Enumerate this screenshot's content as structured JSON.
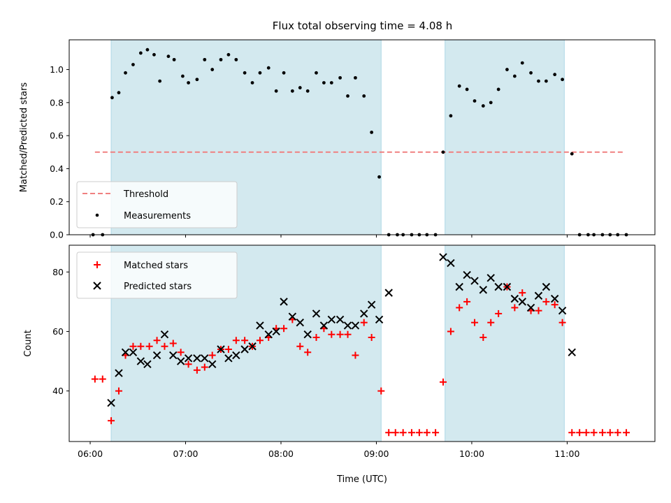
{
  "chart_data": {
    "type": "scatter",
    "title": "Flux total observing time = 4.08 h",
    "xlabel": "Time (UTC)",
    "xlim_hours": [
      5.78,
      11.92
    ],
    "x_ticks": [
      {
        "value": 6,
        "label": "06:00"
      },
      {
        "value": 7,
        "label": "07:00"
      },
      {
        "value": 8,
        "label": "08:00"
      },
      {
        "value": 9,
        "label": "09:00"
      },
      {
        "value": 10,
        "label": "10:00"
      },
      {
        "value": 11,
        "label": "11:00"
      }
    ],
    "colors": {
      "span": "#d3e9ef",
      "span_edge": "#add8e6",
      "threshold": "#f08080",
      "measurements": "#000000",
      "matched": "#ff0000",
      "predicted": "#000000"
    },
    "observing_spans_hours": [
      [
        6.22,
        9.05
      ],
      [
        9.72,
        10.97
      ]
    ],
    "panels": [
      {
        "ylabel": "Matched/Predicted stars",
        "ylim": [
          0,
          1.18
        ],
        "y_ticks": [
          {
            "value": 0.0,
            "label": "0.0"
          },
          {
            "value": 0.2,
            "label": "0.2"
          },
          {
            "value": 0.4,
            "label": "0.4"
          },
          {
            "value": 0.6,
            "label": "0.6"
          },
          {
            "value": 0.8,
            "label": "0.8"
          },
          {
            "value": 1.0,
            "label": "1.0"
          }
        ],
        "legend": [
          "Threshold",
          "Measurements"
        ],
        "legend_position": "lower-left",
        "threshold": {
          "name": "Threshold",
          "y": 0.5,
          "x_range_hours": [
            6.05,
            11.6
          ]
        },
        "measurements": {
          "name": "Measurements",
          "x_hours": [
            6.03,
            6.13,
            6.23,
            6.3,
            6.37,
            6.45,
            6.53,
            6.6,
            6.67,
            6.73,
            6.82,
            6.88,
            6.97,
            7.03,
            7.12,
            7.2,
            7.28,
            7.37,
            7.45,
            7.53,
            7.62,
            7.7,
            7.78,
            7.87,
            7.95,
            8.03,
            8.12,
            8.2,
            8.28,
            8.37,
            8.45,
            8.53,
            8.62,
            8.7,
            8.78,
            8.87,
            8.95,
            9.03,
            9.13,
            9.22,
            9.28,
            9.37,
            9.45,
            9.53,
            9.62,
            9.7,
            9.78,
            9.87,
            9.95,
            10.03,
            10.12,
            10.2,
            10.28,
            10.37,
            10.45,
            10.53,
            10.62,
            10.7,
            10.78,
            10.87,
            10.95,
            11.05,
            11.13,
            11.22,
            11.28,
            11.37,
            11.45,
            11.53,
            11.62
          ],
          "y": [
            0.0,
            0.0,
            0.83,
            0.86,
            0.98,
            1.03,
            1.1,
            1.12,
            1.09,
            0.93,
            1.08,
            1.06,
            0.96,
            0.92,
            0.94,
            1.06,
            1.0,
            1.06,
            1.09,
            1.06,
            0.98,
            0.92,
            0.98,
            1.01,
            0.87,
            0.98,
            0.87,
            0.89,
            0.87,
            0.98,
            0.92,
            0.92,
            0.95,
            0.84,
            0.95,
            0.84,
            0.62,
            0.35,
            0.0,
            0.0,
            0.0,
            0.0,
            0.0,
            0.0,
            0.0,
            0.5,
            0.72,
            0.9,
            0.88,
            0.81,
            0.78,
            0.8,
            0.88,
            1.0,
            0.96,
            1.04,
            0.98,
            0.93,
            0.93,
            0.97,
            0.94,
            0.49,
            0.0,
            0.0,
            0.0,
            0.0,
            0.0,
            0.0,
            0.0
          ]
        }
      },
      {
        "ylabel": "Count",
        "ylim": [
          23,
          89
        ],
        "y_ticks": [
          {
            "value": 40,
            "label": "40"
          },
          {
            "value": 60,
            "label": "60"
          },
          {
            "value": 80,
            "label": "80"
          }
        ],
        "legend": [
          "Matched stars",
          "Predicted stars"
        ],
        "legend_position": "upper-left",
        "matched": {
          "name": "Matched stars",
          "x_hours": [
            6.05,
            6.13,
            6.22,
            6.3,
            6.37,
            6.45,
            6.53,
            6.62,
            6.7,
            6.78,
            6.87,
            6.95,
            7.03,
            7.12,
            7.2,
            7.28,
            7.37,
            7.45,
            7.53,
            7.62,
            7.7,
            7.78,
            7.87,
            7.95,
            8.03,
            8.12,
            8.2,
            8.28,
            8.37,
            8.45,
            8.53,
            8.62,
            8.7,
            8.78,
            8.87,
            8.95,
            9.05,
            9.13,
            9.2,
            9.28,
            9.37,
            9.45,
            9.53,
            9.62,
            9.7,
            9.78,
            9.87,
            9.95,
            10.03,
            10.12,
            10.2,
            10.28,
            10.37,
            10.45,
            10.53,
            10.62,
            10.7,
            10.78,
            10.87,
            10.95,
            11.05,
            11.13,
            11.2,
            11.28,
            11.37,
            11.45,
            11.53,
            11.62
          ],
          "y": [
            44,
            44,
            30,
            40,
            52,
            55,
            55,
            55,
            57,
            55,
            56,
            53,
            49,
            47,
            48,
            52,
            54,
            54,
            57,
            57,
            55,
            57,
            58,
            61,
            61,
            64,
            55,
            53,
            58,
            61,
            59,
            59,
            59,
            52,
            63,
            58,
            40,
            26,
            26,
            26,
            26,
            26,
            26,
            26,
            43,
            60,
            68,
            70,
            63,
            58,
            63,
            66,
            75,
            68,
            73,
            67,
            67,
            70,
            69,
            63,
            26,
            26,
            26,
            26,
            26,
            26,
            26,
            26
          ]
        },
        "predicted": {
          "name": "Predicted stars",
          "x_hours": [
            6.22,
            6.3,
            6.37,
            6.45,
            6.53,
            6.6,
            6.7,
            6.78,
            6.87,
            6.95,
            7.03,
            7.12,
            7.2,
            7.28,
            7.37,
            7.45,
            7.53,
            7.62,
            7.7,
            7.78,
            7.87,
            7.95,
            8.03,
            8.12,
            8.2,
            8.28,
            8.37,
            8.45,
            8.53,
            8.62,
            8.7,
            8.78,
            8.87,
            8.95,
            9.03,
            9.13,
            9.7,
            9.78,
            9.87,
            9.95,
            10.03,
            10.12,
            10.2,
            10.28,
            10.37,
            10.45,
            10.53,
            10.62,
            10.7,
            10.78,
            10.87,
            10.95,
            11.05
          ],
          "y": [
            36,
            46,
            53,
            53,
            50,
            49,
            52,
            59,
            52,
            50,
            51,
            51,
            51,
            49,
            54,
            51,
            52,
            54,
            55,
            62,
            59,
            60,
            70,
            65,
            63,
            59,
            66,
            62,
            64,
            64,
            62,
            62,
            66,
            69,
            64,
            73,
            85,
            83,
            75,
            79,
            77,
            74,
            78,
            75,
            75,
            71,
            70,
            68,
            72,
            75,
            71,
            67,
            53
          ]
        }
      }
    ]
  }
}
